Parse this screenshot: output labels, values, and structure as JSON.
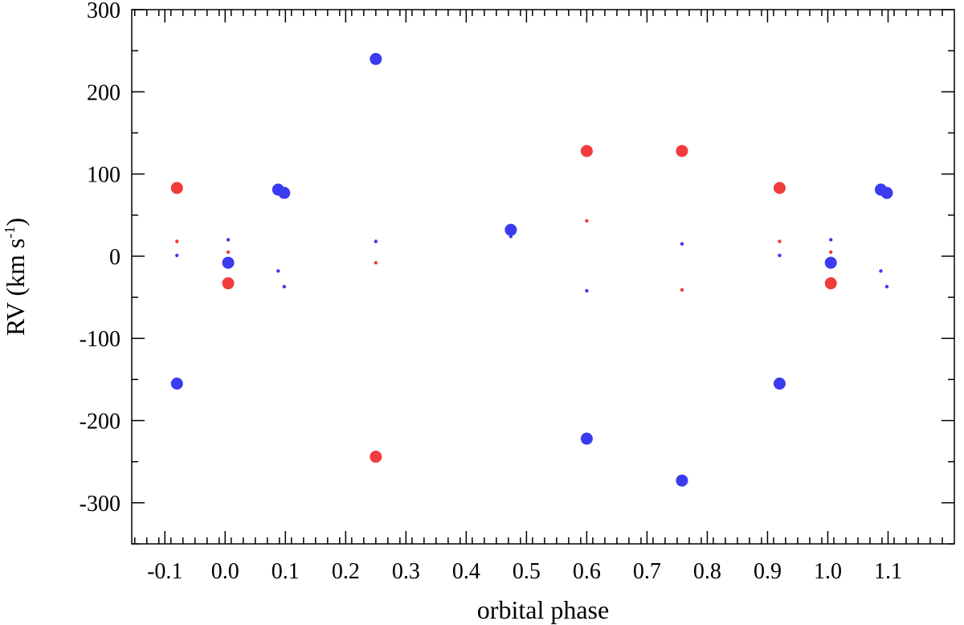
{
  "chart_data": {
    "type": "scatter",
    "title": "",
    "xlabel": "orbital phase",
    "ylabel": {
      "text": "RV (km s",
      "superscript": "-1",
      "close": ")"
    },
    "xlim": [
      -0.155,
      1.21
    ],
    "ylim": [
      -350,
      300
    ],
    "x_ticks": [
      -0.1,
      0.0,
      0.1,
      0.2,
      0.3,
      0.4,
      0.5,
      0.6,
      0.7,
      0.8,
      0.9,
      1.0,
      1.1
    ],
    "x_tick_labels": [
      "-0.1",
      "0.0",
      "0.1",
      "0.2",
      "0.3",
      "0.4",
      "0.5",
      "0.6",
      "0.7",
      "0.8",
      "0.9",
      "1.0",
      "1.1"
    ],
    "y_ticks": [
      300,
      200,
      100,
      0,
      -100,
      -200,
      -300
    ],
    "y_tick_labels": [
      "300",
      "200",
      "100",
      "0",
      "-100",
      "-200",
      "-300"
    ],
    "grid": false,
    "series": [
      {
        "color": "#3b3bf0",
        "marker": "large",
        "points": [
          [
            -0.08,
            -155
          ],
          [
            0.005,
            -8
          ],
          [
            0.088,
            81
          ],
          [
            0.098,
            77
          ],
          [
            0.25,
            240
          ],
          [
            0.474,
            32
          ],
          [
            0.6,
            -222
          ],
          [
            0.758,
            -273
          ],
          [
            0.92,
            -155
          ],
          [
            1.005,
            -8
          ],
          [
            1.088,
            81
          ],
          [
            1.098,
            77
          ]
        ]
      },
      {
        "color": "#f03c3c",
        "marker": "large",
        "points": [
          [
            -0.08,
            83
          ],
          [
            0.005,
            -33
          ],
          [
            0.25,
            -244
          ],
          [
            0.6,
            128
          ],
          [
            0.758,
            128
          ],
          [
            0.92,
            83
          ],
          [
            1.005,
            -33
          ]
        ]
      },
      {
        "color": "#3b3bf0",
        "marker": "small",
        "points": [
          [
            -0.08,
            1
          ],
          [
            0.005,
            20
          ],
          [
            0.088,
            -18
          ],
          [
            0.098,
            -37
          ],
          [
            0.25,
            18
          ],
          [
            0.474,
            24
          ],
          [
            0.6,
            -42
          ],
          [
            0.758,
            15
          ],
          [
            0.92,
            1
          ],
          [
            1.005,
            20
          ],
          [
            1.088,
            -18
          ],
          [
            1.098,
            -37
          ]
        ]
      },
      {
        "color": "#f03c3c",
        "marker": "small",
        "points": [
          [
            -0.08,
            18
          ],
          [
            0.005,
            5
          ],
          [
            0.25,
            -8
          ],
          [
            0.6,
            43
          ],
          [
            0.758,
            -41
          ],
          [
            0.92,
            18
          ],
          [
            1.005,
            5
          ]
        ]
      }
    ]
  }
}
